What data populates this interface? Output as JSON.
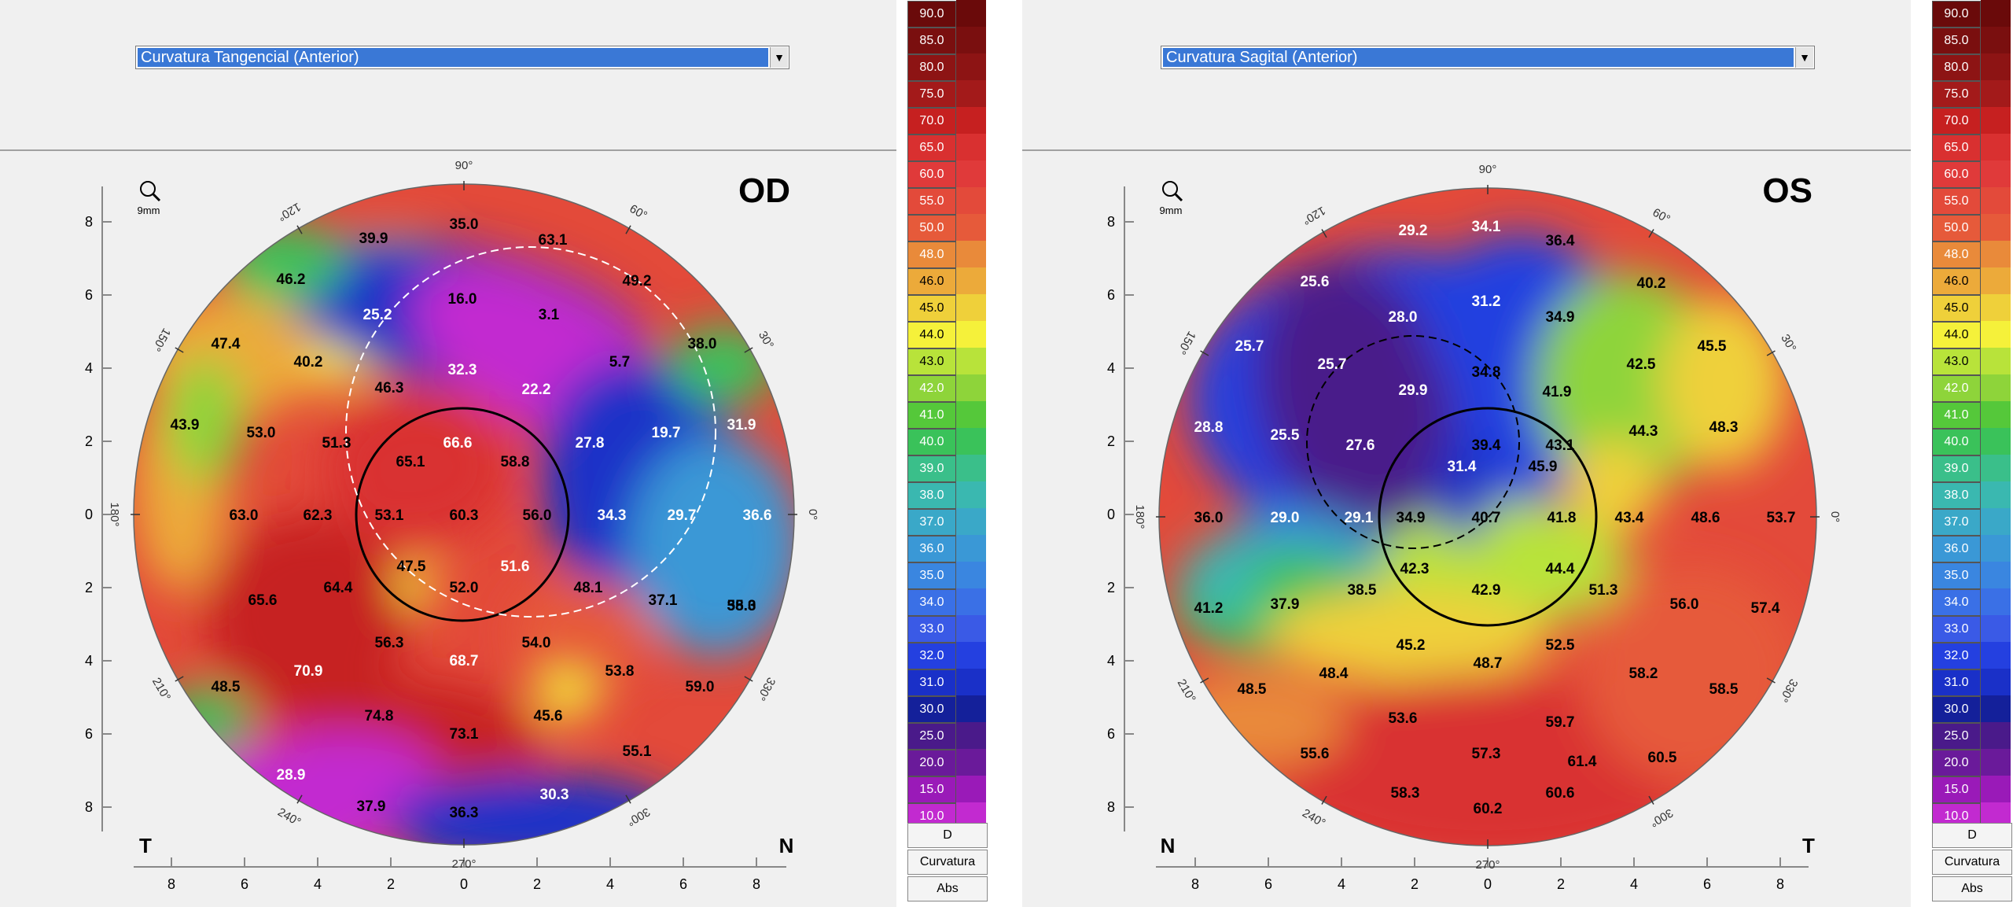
{
  "od": {
    "dropdown": "Curvatura Tangencial (Anterior)",
    "eye": "OD",
    "left_side": "T",
    "right_side": "N",
    "zoom": "9mm",
    "angles": {
      "top": "90°",
      "bottom": "270°",
      "left": "180°",
      "right": "0°",
      "a120": "120°",
      "a60": "60°",
      "a150": "150°",
      "a30": "30°",
      "a210": "210°",
      "a330": "330°",
      "a240": "240°",
      "a300": "300°"
    },
    "values": [
      {
        "t": "35.0",
        "c": "#000"
      },
      {
        "t": "39.9",
        "c": "#000"
      },
      {
        "t": "63.1",
        "c": "#000"
      },
      {
        "t": "46.2",
        "c": "#000"
      },
      {
        "t": "49.2",
        "c": "#000"
      },
      {
        "t": "25.2",
        "c": "#fff"
      },
      {
        "t": "16.0",
        "c": "#000"
      },
      {
        "t": "3.1",
        "c": "#000"
      },
      {
        "t": "47.4",
        "c": "#000"
      },
      {
        "t": "40.2",
        "c": "#000"
      },
      {
        "t": "32.3",
        "c": "#fff"
      },
      {
        "t": "22.2",
        "c": "#fff"
      },
      {
        "t": "5.7",
        "c": "#000"
      },
      {
        "t": "38.0",
        "c": "#000"
      },
      {
        "t": "46.3",
        "c": "#000"
      },
      {
        "t": "43.9",
        "c": "#000"
      },
      {
        "t": "53.0",
        "c": "#000"
      },
      {
        "t": "51.3",
        "c": "#000"
      },
      {
        "t": "66.6",
        "c": "#fff"
      },
      {
        "t": "58.8",
        "c": "#000"
      },
      {
        "t": "27.8",
        "c": "#fff"
      },
      {
        "t": "19.7",
        "c": "#fff"
      },
      {
        "t": "31.9",
        "c": "#fff"
      },
      {
        "t": "65.1",
        "c": "#000"
      },
      {
        "t": "51.3",
        "c": "#000"
      },
      {
        "t": "63.0",
        "c": "#000"
      },
      {
        "t": "62.3",
        "c": "#000"
      },
      {
        "t": "53.1",
        "c": "#000"
      },
      {
        "t": "60.3",
        "c": "#000"
      },
      {
        "t": "56.0",
        "c": "#000"
      },
      {
        "t": "34.3",
        "c": "#fff"
      },
      {
        "t": "29.7",
        "c": "#fff"
      },
      {
        "t": "36.6",
        "c": "#fff"
      },
      {
        "t": "47.5",
        "c": "#000"
      },
      {
        "t": "51.6",
        "c": "#fff"
      },
      {
        "t": "52.0",
        "c": "#000"
      },
      {
        "t": "48.1",
        "c": "#000"
      },
      {
        "t": "37.1",
        "c": "#000"
      },
      {
        "t": "55.0",
        "c": "#000"
      },
      {
        "t": "65.6",
        "c": "#000"
      },
      {
        "t": "64.4",
        "c": "#000"
      },
      {
        "t": "38.3",
        "c": "#000"
      },
      {
        "t": "56.3",
        "c": "#000"
      },
      {
        "t": "54.0",
        "c": "#000"
      },
      {
        "t": "70.9",
        "c": "#fff"
      },
      {
        "t": "68.7",
        "c": "#fff"
      },
      {
        "t": "53.8",
        "c": "#000"
      },
      {
        "t": "59.0",
        "c": "#000"
      },
      {
        "t": "48.5",
        "c": "#000"
      },
      {
        "t": "74.8",
        "c": "#000"
      },
      {
        "t": "73.1",
        "c": "#000"
      },
      {
        "t": "45.6",
        "c": "#000"
      },
      {
        "t": "55.1",
        "c": "#000"
      },
      {
        "t": "28.9",
        "c": "#fff"
      },
      {
        "t": "37.9",
        "c": "#000"
      },
      {
        "t": "36.3",
        "c": "#000"
      },
      {
        "t": "30.3",
        "c": "#fff"
      }
    ]
  },
  "os": {
    "dropdown": "Curvatura Sagital (Anterior)",
    "eye": "OS",
    "left_side": "N",
    "right_side": "T",
    "zoom": "9mm",
    "angles": {
      "top": "90°",
      "bottom": "270°",
      "left": "180°",
      "right": "0°",
      "a120": "120°",
      "a60": "60°",
      "a150": "150°",
      "a30": "30°",
      "a210": "210°",
      "a330": "330°",
      "a240": "240°",
      "a300": "300°"
    },
    "values": [
      {
        "t": "29.2",
        "c": "#fff"
      },
      {
        "t": "34.1",
        "c": "#fff"
      },
      {
        "t": "36.4",
        "c": "#000"
      },
      {
        "t": "25.6",
        "c": "#fff"
      },
      {
        "t": "31.2",
        "c": "#fff"
      },
      {
        "t": "40.2",
        "c": "#000"
      },
      {
        "t": "28.0",
        "c": "#fff"
      },
      {
        "t": "34.9",
        "c": "#000"
      },
      {
        "t": "25.7",
        "c": "#fff"
      },
      {
        "t": "25.7",
        "c": "#fff"
      },
      {
        "t": "34.8",
        "c": "#000"
      },
      {
        "t": "45.5",
        "c": "#000"
      },
      {
        "t": "42.5",
        "c": "#000"
      },
      {
        "t": "29.9",
        "c": "#fff"
      },
      {
        "t": "41.9",
        "c": "#000"
      },
      {
        "t": "28.8",
        "c": "#fff"
      },
      {
        "t": "25.5",
        "c": "#fff"
      },
      {
        "t": "27.6",
        "c": "#fff"
      },
      {
        "t": "39.4",
        "c": "#000"
      },
      {
        "t": "43.1",
        "c": "#000"
      },
      {
        "t": "44.3",
        "c": "#000"
      },
      {
        "t": "48.3",
        "c": "#000"
      },
      {
        "t": "31.4",
        "c": "#fff"
      },
      {
        "t": "45.9",
        "c": "#000"
      },
      {
        "t": "36.0",
        "c": "#000"
      },
      {
        "t": "29.0",
        "c": "#fff"
      },
      {
        "t": "29.1",
        "c": "#fff"
      },
      {
        "t": "34.9",
        "c": "#000"
      },
      {
        "t": "40.7",
        "c": "#000"
      },
      {
        "t": "41.8",
        "c": "#000"
      },
      {
        "t": "43.4",
        "c": "#000"
      },
      {
        "t": "48.6",
        "c": "#000"
      },
      {
        "t": "53.7",
        "c": "#000"
      },
      {
        "t": "42.3",
        "c": "#000"
      },
      {
        "t": "44.4",
        "c": "#000"
      },
      {
        "t": "41.2",
        "c": "#000"
      },
      {
        "t": "37.9",
        "c": "#000"
      },
      {
        "t": "38.5",
        "c": "#000"
      },
      {
        "t": "42.9",
        "c": "#000"
      },
      {
        "t": "51.3",
        "c": "#000"
      },
      {
        "t": "56.0",
        "c": "#000"
      },
      {
        "t": "57.4",
        "c": "#000"
      },
      {
        "t": "45.2",
        "c": "#000"
      },
      {
        "t": "52.5",
        "c": "#000"
      },
      {
        "t": "48.4",
        "c": "#000"
      },
      {
        "t": "48.7",
        "c": "#000"
      },
      {
        "t": "58.2",
        "c": "#000"
      },
      {
        "t": "48.5",
        "c": "#000"
      },
      {
        "t": "58.5",
        "c": "#000"
      },
      {
        "t": "53.6",
        "c": "#000"
      },
      {
        "t": "59.7",
        "c": "#000"
      },
      {
        "t": "55.6",
        "c": "#000"
      },
      {
        "t": "57.3",
        "c": "#000"
      },
      {
        "t": "61.4",
        "c": "#000"
      },
      {
        "t": "60.5",
        "c": "#000"
      },
      {
        "t": "58.3",
        "c": "#000"
      },
      {
        "t": "60.2",
        "c": "#000"
      },
      {
        "t": "60.6",
        "c": "#000"
      }
    ]
  },
  "axis_ticks": {
    "y": [
      "8",
      "6",
      "4",
      "2",
      "0",
      "2",
      "4",
      "6",
      "8"
    ],
    "x": [
      "8",
      "6",
      "4",
      "2",
      "0",
      "2",
      "4",
      "6",
      "8"
    ]
  },
  "scale": {
    "labels": [
      "90.0",
      "85.0",
      "80.0",
      "75.0",
      "70.0",
      "65.0",
      "60.0",
      "55.0",
      "50.0",
      "48.0",
      "46.0",
      "45.0",
      "44.0",
      "43.0",
      "42.0",
      "41.0",
      "40.0",
      "39.0",
      "38.0",
      "37.0",
      "36.0",
      "35.0",
      "34.0",
      "33.0",
      "32.0",
      "31.0",
      "30.0",
      "25.0",
      "20.0",
      "15.0",
      "10.0"
    ],
    "colors": [
      "#6a0a0a",
      "#7a0f0f",
      "#8d1414",
      "#a31a1a",
      "#c62020",
      "#d93030",
      "#e03a3a",
      "#e34a3a",
      "#e65a3a",
      "#e98a3a",
      "#ecaa3a",
      "#efd03a",
      "#f5f13a",
      "#b8e33a",
      "#8ed43a",
      "#55c83a",
      "#3ac25a",
      "#3abf8a",
      "#3ab8b0",
      "#3aa8c8",
      "#3a98d6",
      "#3a86e0",
      "#3a70e6",
      "#3a5ae6",
      "#2440e0",
      "#1a30c8",
      "#14209a",
      "#4a1a8a",
      "#6a1a9a",
      "#9a1ab8",
      "#c22ad0"
    ],
    "unit": "D",
    "mode": "Curvatura",
    "type": "Abs"
  }
}
